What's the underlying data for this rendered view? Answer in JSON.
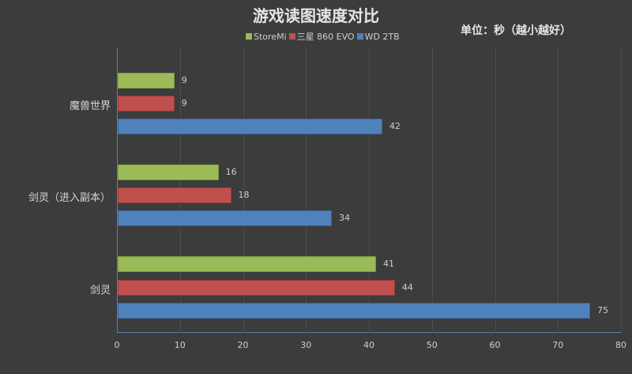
{
  "title": "游戏读图速度对比",
  "unit_note": "单位：秒（越小越好）",
  "legend": [
    {
      "label": "StoreMi",
      "color": "#9bbb59"
    },
    {
      "label": "三星 860 EVO",
      "color": "#c0504d"
    },
    {
      "label": "WD 2TB",
      "color": "#4f81bd"
    }
  ],
  "chart_data": {
    "type": "bar",
    "orientation": "horizontal",
    "title": "游戏读图速度对比",
    "subtitle": "单位：秒（越小越好）",
    "categories": [
      "魔兽世界",
      "剑灵（进入副本）",
      "剑灵"
    ],
    "series": [
      {
        "name": "StoreMi",
        "color": "#9bbb59",
        "values": [
          9,
          16,
          41
        ]
      },
      {
        "name": "三星 860 EVO",
        "color": "#c0504d",
        "values": [
          9,
          18,
          44
        ]
      },
      {
        "name": "WD 2TB",
        "color": "#4f81bd",
        "values": [
          42,
          34,
          75
        ]
      }
    ],
    "xlabel": "",
    "ylabel": "",
    "xlim": [
      0,
      80
    ],
    "xticks": [
      0,
      10,
      20,
      30,
      40,
      50,
      60,
      70,
      80
    ],
    "grid": true,
    "legend_position": "top"
  }
}
